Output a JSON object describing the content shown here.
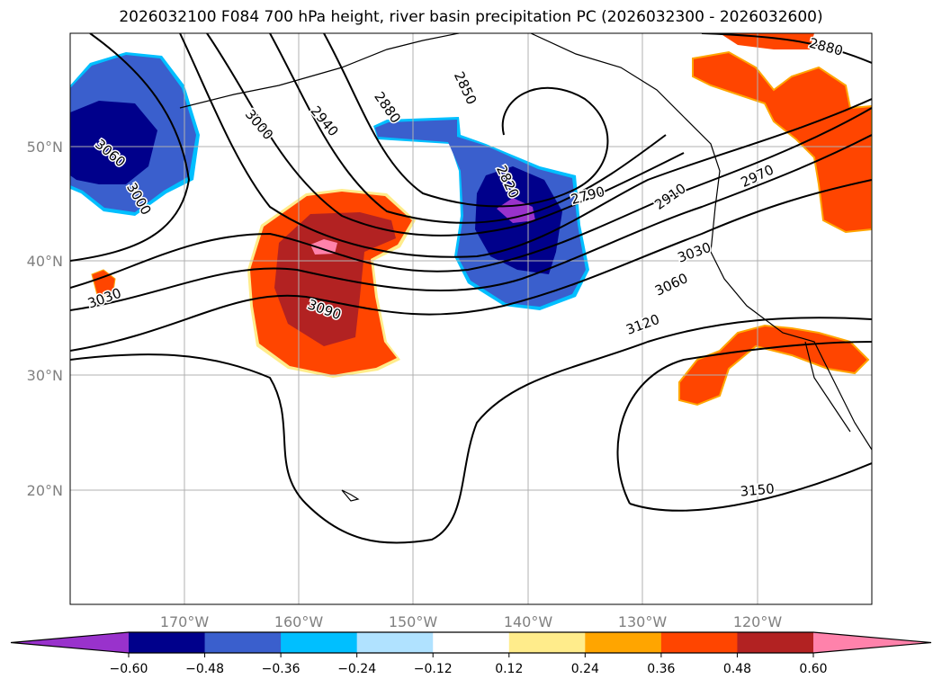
{
  "title": "2026032100 F084 700 hPa height, river basin precipitation PC (2026032300 - 2026032600)",
  "map": {
    "lon_range": [
      -180,
      -110
    ],
    "lat_range": [
      10,
      60
    ],
    "lon_ticks": [
      "170°W",
      "160°W",
      "150°W",
      "140°W",
      "130°W",
      "120°W"
    ],
    "lat_ticks": [
      "50°N",
      "40°N",
      "30°N",
      "20°N"
    ]
  },
  "contour_labels": [
    {
      "text": "3060",
      "lon": -176.5,
      "lat": 49.5,
      "rot": 40
    },
    {
      "text": "3000",
      "lon": -174,
      "lat": 45.5,
      "rot": 60
    },
    {
      "text": "3030",
      "lon": -177,
      "lat": 36.8,
      "rot": -20
    },
    {
      "text": "3000",
      "lon": -163.5,
      "lat": 52,
      "rot": 50
    },
    {
      "text": "2940",
      "lon": -157.8,
      "lat": 52.3,
      "rot": 50
    },
    {
      "text": "2880",
      "lon": -152.3,
      "lat": 53.5,
      "rot": 55
    },
    {
      "text": "2850",
      "lon": -145.5,
      "lat": 55.2,
      "rot": 65
    },
    {
      "text": "2820",
      "lon": -141.8,
      "lat": 47,
      "rot": 65
    },
    {
      "text": "2790",
      "lon": -134.8,
      "lat": 45.8,
      "rot": -15
    },
    {
      "text": "2910",
      "lon": -127.6,
      "lat": 45.7,
      "rot": -35
    },
    {
      "text": "2970",
      "lon": -120,
      "lat": 47.5,
      "rot": -25
    },
    {
      "text": "3030",
      "lon": -125.5,
      "lat": 40.8,
      "rot": -20
    },
    {
      "text": "3060",
      "lon": -127.5,
      "lat": 38,
      "rot": -25
    },
    {
      "text": "3120",
      "lon": -130,
      "lat": 34.5,
      "rot": -20
    },
    {
      "text": "3090",
      "lon": -157.8,
      "lat": 35.8,
      "rot": 20
    },
    {
      "text": "3150",
      "lon": -120,
      "lat": 20,
      "rot": -5
    },
    {
      "text": "2880",
      "lon": -114,
      "lat": 58.8,
      "rot": 15
    }
  ],
  "colorbar": {
    "colors": [
      "#9932cc",
      "#00008b",
      "#3a5fcd",
      "#00bfff",
      "#b0e2ff",
      "#ffffff",
      "#ffec8b",
      "#ffa500",
      "#ff4500",
      "#b22222",
      "#ff82ab"
    ],
    "levels": [
      "−0.60",
      "−0.48",
      "−0.36",
      "−0.24",
      "−0.12",
      "0.12",
      "0.24",
      "0.36",
      "0.48",
      "0.60"
    ]
  }
}
